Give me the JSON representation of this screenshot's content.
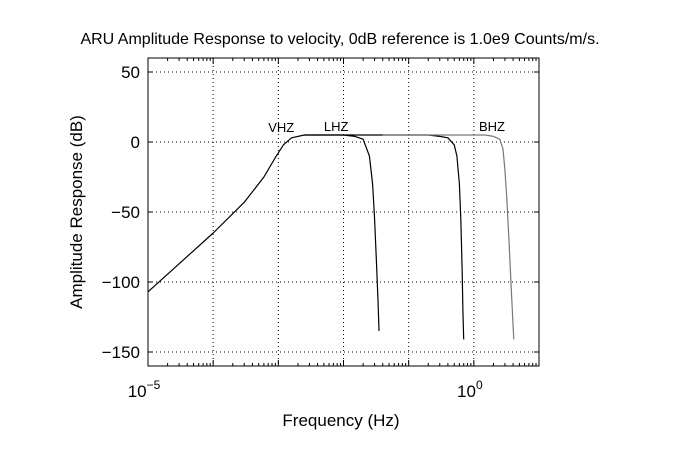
{
  "chart_data": {
    "type": "line",
    "title": "ARU Amplitude Response to velocity, 0dB reference is 1.0e9 Counts/m/s.",
    "xlabel": "Frequency (Hz)",
    "ylabel": "Amplitude Response (dB)",
    "x_scale": "log",
    "xlim": [
      1e-05,
      10
    ],
    "ylim": [
      -160,
      60
    ],
    "grid": true,
    "x_ticks": [
      {
        "value": 1e-05,
        "base": "10",
        "exp": "−5"
      },
      {
        "value": 1,
        "base": "10",
        "exp": "0"
      }
    ],
    "y_ticks": [
      {
        "value": 50,
        "label": "50"
      },
      {
        "value": 0,
        "label": "0"
      },
      {
        "value": -50,
        "label": "−50"
      },
      {
        "value": -100,
        "label": "−100"
      },
      {
        "value": -150,
        "label": "−150"
      }
    ],
    "series": [
      {
        "name": "VHZ",
        "color": "#000000",
        "x": [
          1e-05,
          3e-05,
          0.0001,
          0.0003,
          0.0006,
          0.0009,
          0.0012,
          0.0016,
          0.0025,
          0.005,
          0.01,
          0.015,
          0.02,
          0.025,
          0.028,
          0.03,
          0.032,
          0.034,
          0.035
        ],
        "y": [
          -107,
          -87,
          -65,
          -43,
          -25,
          -11,
          -2,
          3,
          5,
          5,
          5,
          4,
          2,
          -10,
          -30,
          -55,
          -85,
          -115,
          -135
        ]
      },
      {
        "name": "LHZ",
        "color": "#000000",
        "x": [
          0.0025,
          0.005,
          0.01,
          0.05,
          0.1,
          0.2,
          0.3,
          0.4,
          0.5,
          0.55,
          0.6,
          0.63,
          0.66,
          0.68,
          0.7
        ],
        "y": [
          5,
          5,
          5,
          5,
          5,
          5,
          4,
          3,
          -2,
          -10,
          -30,
          -55,
          -90,
          -120,
          -141
        ]
      },
      {
        "name": "BHZ",
        "color": "#777777",
        "x": [
          0.04,
          0.1,
          0.5,
          1,
          1.5,
          2,
          2.5,
          2.8,
          3,
          3.2,
          3.5,
          3.8,
          4.1
        ],
        "y": [
          5,
          5,
          5,
          5,
          5,
          4,
          2,
          -5,
          -20,
          -40,
          -75,
          -110,
          -141
        ]
      }
    ],
    "series_labels": [
      {
        "name": "VHZ",
        "x": 0.0007,
        "y": 7
      },
      {
        "name": "LHZ",
        "x": 0.005,
        "y": 8
      },
      {
        "name": "BHZ",
        "x": 1.2,
        "y": 8
      }
    ]
  }
}
